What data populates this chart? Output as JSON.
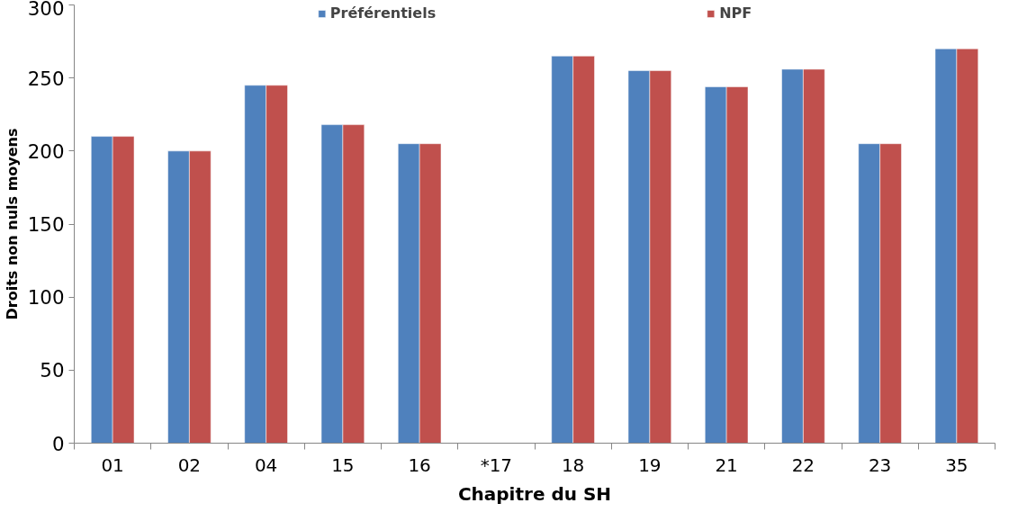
{
  "chart_data": {
    "type": "bar",
    "xlabel": "Chapitre du SH",
    "ylabel": "Droits non nuls moyens",
    "categories": [
      "01",
      "02",
      "04",
      "15",
      "16",
      "*17",
      "18",
      "19",
      "21",
      "22",
      "23",
      "35"
    ],
    "series": [
      {
        "name": "Préférentiels",
        "color": "#4f81bd",
        "values": [
          210,
          200,
          245,
          218,
          205,
          null,
          265,
          255,
          244,
          256,
          205,
          270
        ]
      },
      {
        "name": "NPF",
        "color": "#c0504d",
        "values": [
          210,
          200,
          245,
          218,
          205,
          null,
          265,
          255,
          244,
          256,
          205,
          270
        ]
      }
    ],
    "ylim": [
      0,
      300
    ],
    "yticks": [
      0,
      50,
      100,
      150,
      200,
      250,
      300
    ],
    "grid": false,
    "legend": "top"
  }
}
